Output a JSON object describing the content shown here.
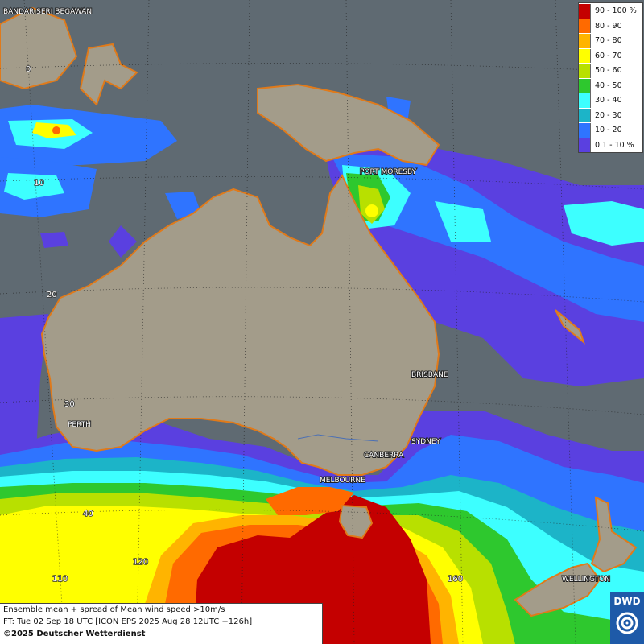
{
  "legend": {
    "items": [
      {
        "label": "90 - 100 %",
        "color": "#c40000"
      },
      {
        "label": "80 - 90",
        "color": "#ff6a00"
      },
      {
        "label": "70 - 80",
        "color": "#ffb400"
      },
      {
        "label": "60 - 70",
        "color": "#ffff00"
      },
      {
        "label": "50 - 60",
        "color": "#b8e000"
      },
      {
        "label": "40 - 50",
        "color": "#2ec82e"
      },
      {
        "label": "30 - 40",
        "color": "#3dffff"
      },
      {
        "label": "20 - 30",
        "color": "#1cb4c8"
      },
      {
        "label": "10 - 20",
        "color": "#2f74ff"
      },
      {
        "label": "0.1 - 10 %",
        "color": "#5a40e0"
      }
    ]
  },
  "cities": {
    "bandar": "BANDAR SERI BEGAWAN",
    "port_moresby": "PORT MORESBY",
    "brisbane": "BRISBANE",
    "perth": "PERTH",
    "sydney": "SYDNEY",
    "canberra": "CANBERRA",
    "melbourne": "MELBOURNE",
    "wellington": "WELLINGTON"
  },
  "grid_labels": {
    "lat_0": "0",
    "lat_10": "10",
    "lat_20": "20",
    "lat_30": "30",
    "lat_40": "40",
    "lon_110": "110",
    "lon_120": "120",
    "lon_160": "160"
  },
  "info": {
    "line1": "Ensemble mean + spread of Mean wind speed >10m/s",
    "line2": "FT: Tue 02 Sep 18 UTC [ICON EPS 2025 Aug 28 12UTC +126h]",
    "line3": "©2025 Deutscher Wetterdienst"
  },
  "logo": {
    "text": "DWD"
  },
  "colors": {
    "ocean": "#5f6a72",
    "land": "#a39c8a",
    "coast": "#e07a1a"
  }
}
